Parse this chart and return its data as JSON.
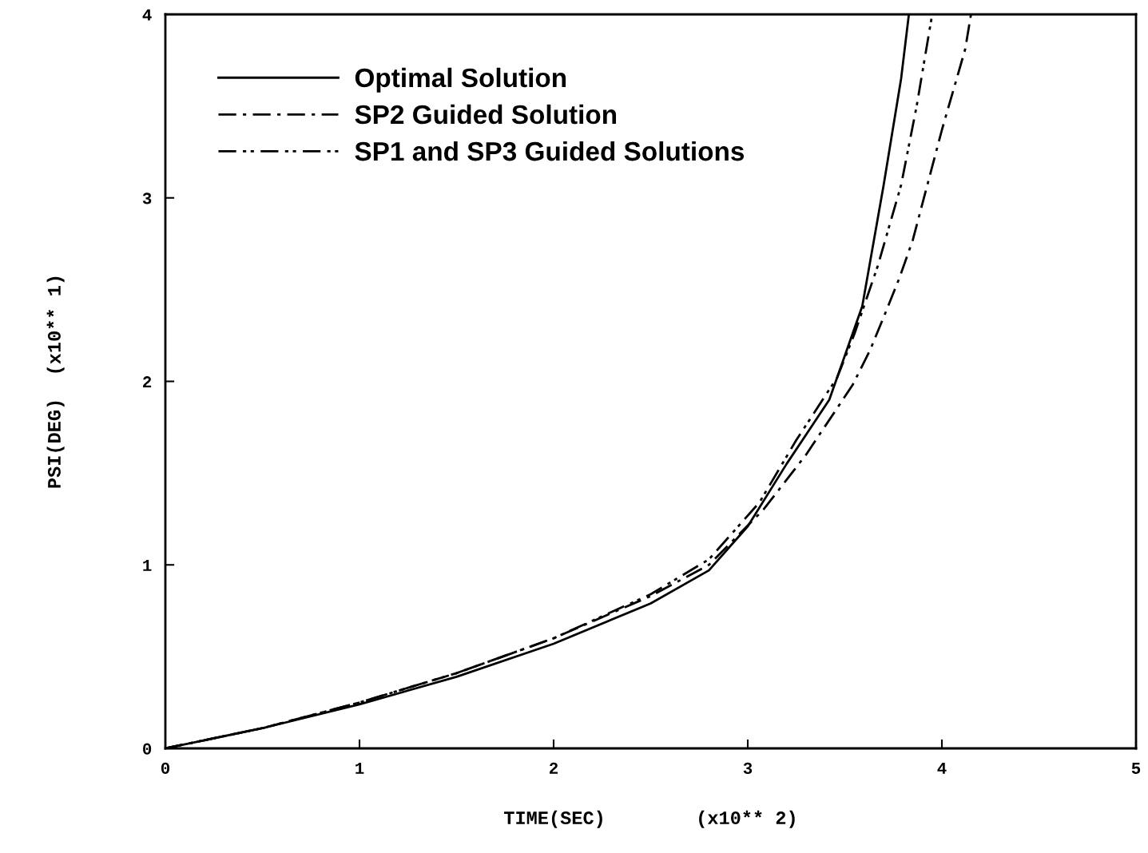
{
  "chart_data": {
    "type": "line",
    "xlabel": "TIME(SEC)        (x10** 2)",
    "ylabel": "PSI(DEG)  (x10** 1)",
    "xlim": [
      0,
      5
    ],
    "ylim": [
      0,
      4
    ],
    "xticks": [
      0,
      1,
      2,
      3,
      4,
      5
    ],
    "yticks": [
      0,
      1,
      2,
      3,
      4
    ],
    "grid": false,
    "legend": "top left",
    "series": [
      {
        "name": "Optimal Solution",
        "color": "#000000",
        "line_style": "solid",
        "x": [
          0,
          0.5,
          1,
          1.5,
          2,
          2.5,
          2.8,
          3.0,
          3.2,
          3.42,
          3.59,
          3.7,
          3.79,
          3.83
        ],
        "values": [
          0,
          0.11,
          0.24,
          0.39,
          0.57,
          0.79,
          0.97,
          1.21,
          1.55,
          1.9,
          2.41,
          3.07,
          3.65,
          4.0
        ]
      },
      {
        "name": "SP2 Guided Solution",
        "color": "#000000",
        "line_style": "dashdot",
        "x": [
          0,
          0.5,
          1,
          1.5,
          2,
          2.5,
          2.8,
          3.08,
          3.3,
          3.54,
          3.63,
          3.7,
          3.78,
          3.85,
          3.9,
          3.95,
          4.0,
          4.06,
          4.12,
          4.15
        ],
        "values": [
          0,
          0.11,
          0.25,
          0.41,
          0.6,
          0.83,
          1.0,
          1.3,
          1.6,
          1.98,
          2.17,
          2.35,
          2.56,
          2.77,
          2.97,
          3.17,
          3.37,
          3.59,
          3.81,
          4.0
        ]
      },
      {
        "name": "SP1 and SP3 Guided Solutions",
        "color": "#000000",
        "line_style": "dashdotdot",
        "x": [
          0,
          0.5,
          1,
          1.5,
          2,
          2.5,
          2.8,
          3.06,
          3.25,
          3.46,
          3.55,
          3.67,
          3.79,
          3.87,
          3.95
        ],
        "values": [
          0,
          0.11,
          0.25,
          0.41,
          0.6,
          0.84,
          1.03,
          1.34,
          1.68,
          2.02,
          2.26,
          2.63,
          3.07,
          3.5,
          4.0
        ]
      }
    ]
  }
}
